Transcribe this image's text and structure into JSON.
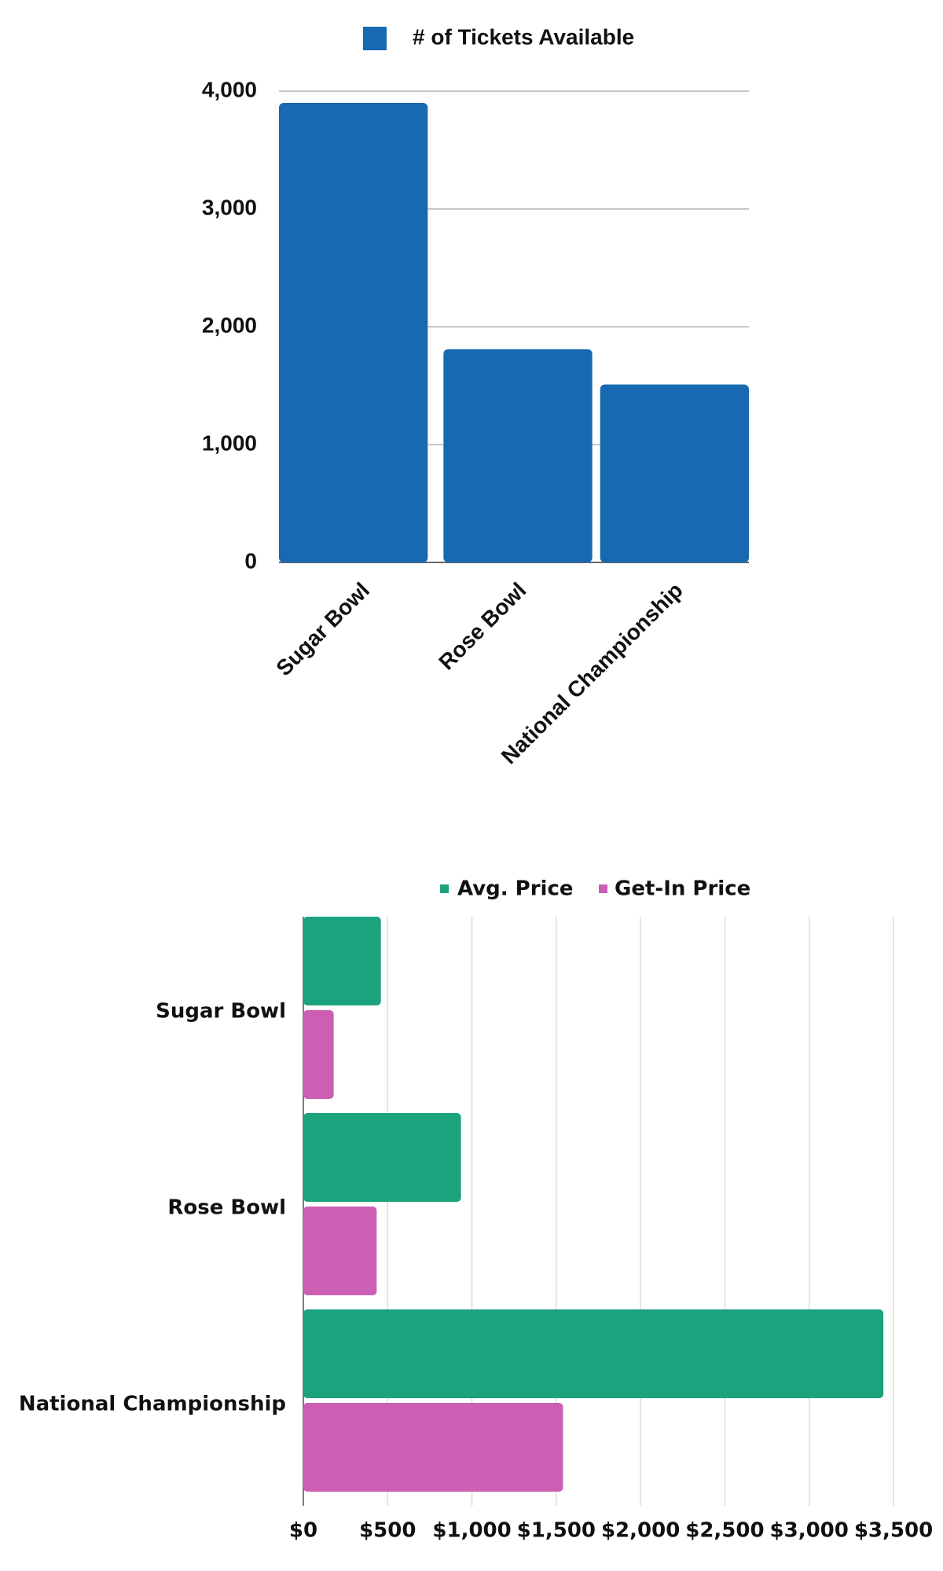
{
  "chart_data": [
    {
      "type": "bar",
      "categories": [
        "Sugar Bowl",
        "Rose Bowl",
        "National Championship"
      ],
      "series": [
        {
          "name": "# of Tickets Available",
          "color": "#1769b1",
          "values": [
            3900,
            1810,
            1510
          ]
        }
      ],
      "ylim": [
        0,
        4000
      ],
      "yticks": [
        0,
        {
          "value": 1000,
          "label": "1,000"
        },
        {
          "value": 2000,
          "label": "2,000"
        },
        {
          "value": 3000,
          "label": "3,000"
        },
        {
          "value": 4000,
          "label": "4,000"
        }
      ],
      "grid": true,
      "legend": "top"
    },
    {
      "type": "hbar",
      "categories": [
        "Sugar Bowl",
        "Rose Bowl",
        "National Championship"
      ],
      "series": [
        {
          "name": "Avg. Price",
          "color": "#1ba37e",
          "values": [
            460,
            935,
            3440
          ]
        },
        {
          "name": "Get-In Price",
          "color": "#cc5fb4",
          "values": [
            180,
            435,
            1540
          ]
        }
      ],
      "xlim": [
        0,
        3500
      ],
      "xticks": [
        {
          "value": 0,
          "label": "$0"
        },
        {
          "value": 500,
          "label": "$500"
        },
        {
          "value": 1000,
          "label": "$1,000"
        },
        {
          "value": 1500,
          "label": "$1,500"
        },
        {
          "value": 2000,
          "label": "$2,000"
        },
        {
          "value": 2500,
          "label": "$2,500"
        },
        {
          "value": 3000,
          "label": "$3,000"
        },
        {
          "value": 3500,
          "label": "$3,500"
        }
      ],
      "grid": true,
      "legend": "top"
    }
  ]
}
